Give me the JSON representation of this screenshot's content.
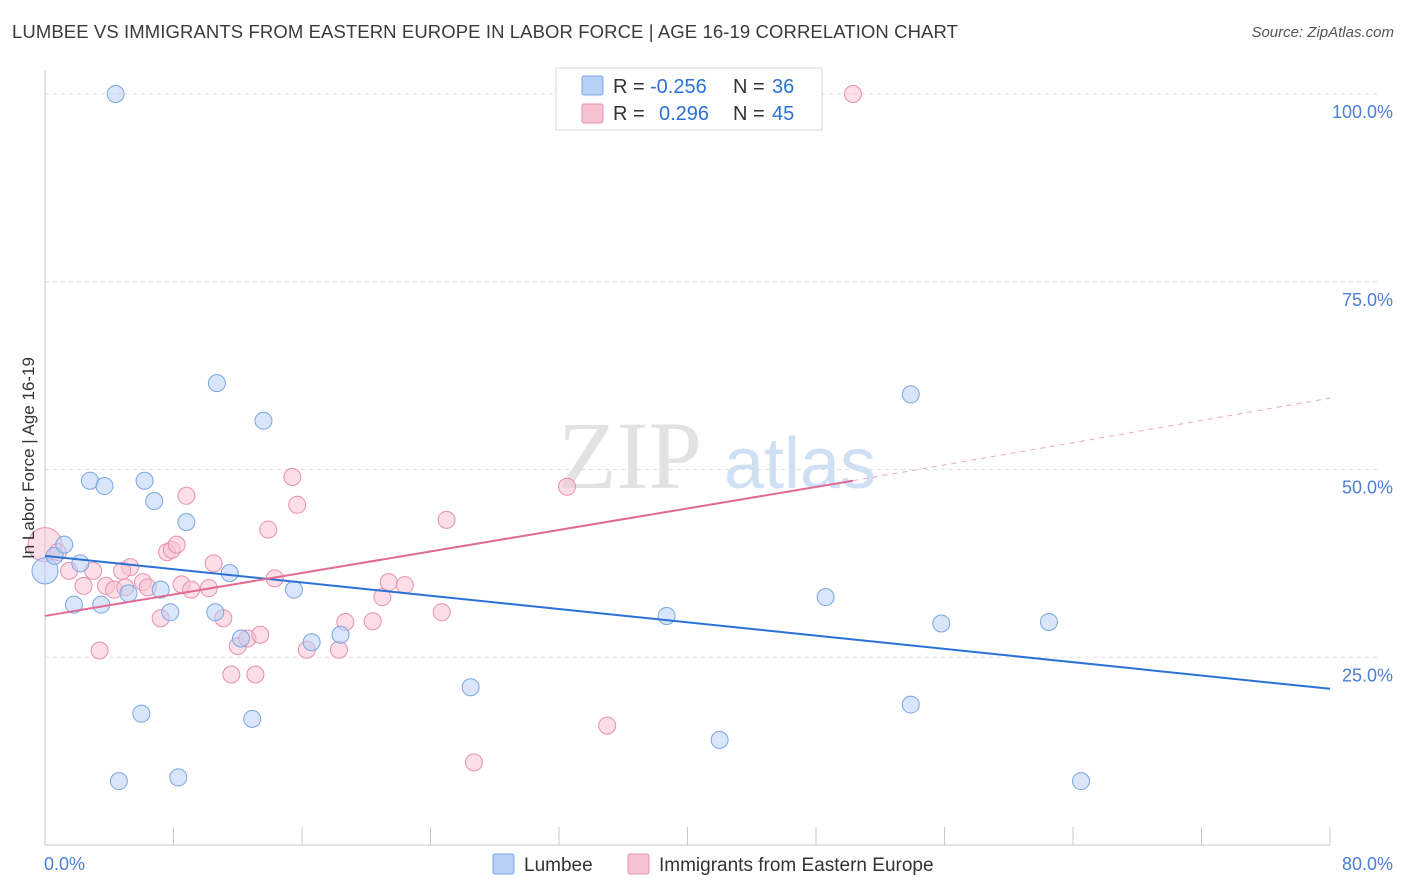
{
  "title": "LUMBEE VS IMMIGRANTS FROM EASTERN EUROPE IN LABOR FORCE | AGE 16-19 CORRELATION CHART",
  "source": "Source: ZipAtlas.com",
  "watermark": {
    "zip": "ZIP",
    "atlas": "atlas"
  },
  "colors": {
    "lumbee_fill": "#b8d0f5",
    "lumbee_stroke": "#7aa6e0",
    "lumbee_line": "#2b72d6",
    "immig_fill": "#f7c3d3",
    "immig_stroke": "#e890ad",
    "immig_line": "#e06b94",
    "grid": "#dddddd",
    "axis_text": "#4a7fd4"
  },
  "legend": {
    "rows": [
      {
        "r_label": "R =",
        "r_value": "-0.256",
        "n_label": "N =",
        "n_value": "36"
      },
      {
        "r_label": "R =",
        "r_value": "0.296",
        "n_label": "N =",
        "n_value": "45"
      }
    ]
  },
  "bottom_legend": {
    "lumbee": "Lumbee",
    "immig": "Immigrants from Eastern Europe"
  },
  "chart_data": {
    "type": "scatter",
    "title": "LUMBEE VS IMMIGRANTS FROM EASTERN EUROPE IN LABOR FORCE | AGE 16-19 CORRELATION CHART",
    "xlabel": "",
    "ylabel": "In Labor Force | Age 16-19",
    "xlim": [
      0,
      80
    ],
    "ylim": [
      0,
      102
    ],
    "x_tick_labels": [
      "0.0%",
      "80.0%"
    ],
    "y_ticks": [
      25,
      50,
      75,
      100
    ],
    "y_tick_labels": [
      "25.0%",
      "50.0%",
      "75.0%",
      "100.0%"
    ],
    "grid": true,
    "legend_position": "top-center",
    "series": [
      {
        "name": "Lumbee",
        "r": -0.256,
        "n": 36,
        "trend": {
          "x": [
            0,
            80
          ],
          "y": [
            38.5,
            20.8
          ],
          "dashed_to": 80
        },
        "points": [
          [
            4.4,
            100.0
          ],
          [
            0.0,
            36.5
          ],
          [
            0.6,
            38.5
          ],
          [
            1.2,
            40.0
          ],
          [
            2.2,
            37.5
          ],
          [
            1.8,
            32.0
          ],
          [
            3.5,
            32.0
          ],
          [
            2.8,
            48.5
          ],
          [
            3.7,
            47.8
          ],
          [
            6.2,
            48.5
          ],
          [
            6.8,
            45.8
          ],
          [
            5.2,
            33.5
          ],
          [
            7.2,
            34.0
          ],
          [
            8.8,
            43.0
          ],
          [
            10.7,
            61.5
          ],
          [
            13.6,
            56.5
          ],
          [
            7.8,
            31.0
          ],
          [
            10.6,
            31.0
          ],
          [
            11.5,
            36.2
          ],
          [
            12.2,
            27.5
          ],
          [
            15.5,
            34.0
          ],
          [
            16.6,
            27.0
          ],
          [
            18.4,
            28.0
          ],
          [
            26.5,
            21.0
          ],
          [
            6.0,
            17.5
          ],
          [
            12.9,
            16.8
          ],
          [
            4.6,
            8.5
          ],
          [
            8.3,
            9.0
          ],
          [
            38.7,
            30.5
          ],
          [
            42.0,
            14.0
          ],
          [
            48.6,
            33.0
          ],
          [
            53.9,
            60.0
          ],
          [
            55.8,
            29.5
          ],
          [
            62.5,
            29.7
          ],
          [
            53.9,
            18.7
          ],
          [
            64.5,
            8.5
          ]
        ]
      },
      {
        "name": "Immigrants from Eastern Europe",
        "r": 0.296,
        "n": 45,
        "trend": {
          "x": [
            0,
            50.3
          ],
          "y": [
            30.5,
            48.5
          ],
          "dashed_x": [
            50.3,
            80
          ],
          "dashed_y": [
            48.5,
            59.5
          ]
        },
        "points": [
          [
            50.3,
            100.0
          ],
          [
            0.0,
            40.0
          ],
          [
            0.8,
            39.0
          ],
          [
            1.5,
            36.5
          ],
          [
            3.0,
            36.5
          ],
          [
            2.4,
            34.5
          ],
          [
            3.8,
            34.5
          ],
          [
            4.3,
            34.0
          ],
          [
            5.0,
            34.3
          ],
          [
            5.3,
            37.0
          ],
          [
            4.8,
            36.5
          ],
          [
            6.1,
            35.0
          ],
          [
            6.4,
            34.3
          ],
          [
            7.6,
            39.0
          ],
          [
            7.9,
            39.3
          ],
          [
            8.2,
            40.0
          ],
          [
            8.5,
            34.7
          ],
          [
            8.8,
            46.5
          ],
          [
            9.1,
            34.0
          ],
          [
            10.2,
            34.2
          ],
          [
            10.5,
            37.5
          ],
          [
            11.1,
            30.2
          ],
          [
            12.0,
            26.5
          ],
          [
            12.6,
            27.5
          ],
          [
            13.4,
            28.0
          ],
          [
            13.9,
            42.0
          ],
          [
            14.3,
            35.5
          ],
          [
            15.4,
            49.0
          ],
          [
            15.7,
            45.3
          ],
          [
            16.3,
            26.0
          ],
          [
            18.3,
            26.0
          ],
          [
            18.7,
            29.7
          ],
          [
            20.4,
            29.8
          ],
          [
            21.0,
            33.0
          ],
          [
            21.4,
            35.0
          ],
          [
            22.4,
            34.6
          ],
          [
            24.7,
            31.0
          ],
          [
            25.0,
            43.3
          ],
          [
            32.5,
            47.7
          ],
          [
            11.6,
            22.7
          ],
          [
            13.1,
            22.7
          ],
          [
            3.4,
            25.9
          ],
          [
            35.0,
            15.9
          ],
          [
            26.7,
            11.0
          ],
          [
            7.2,
            30.2
          ]
        ]
      }
    ]
  }
}
